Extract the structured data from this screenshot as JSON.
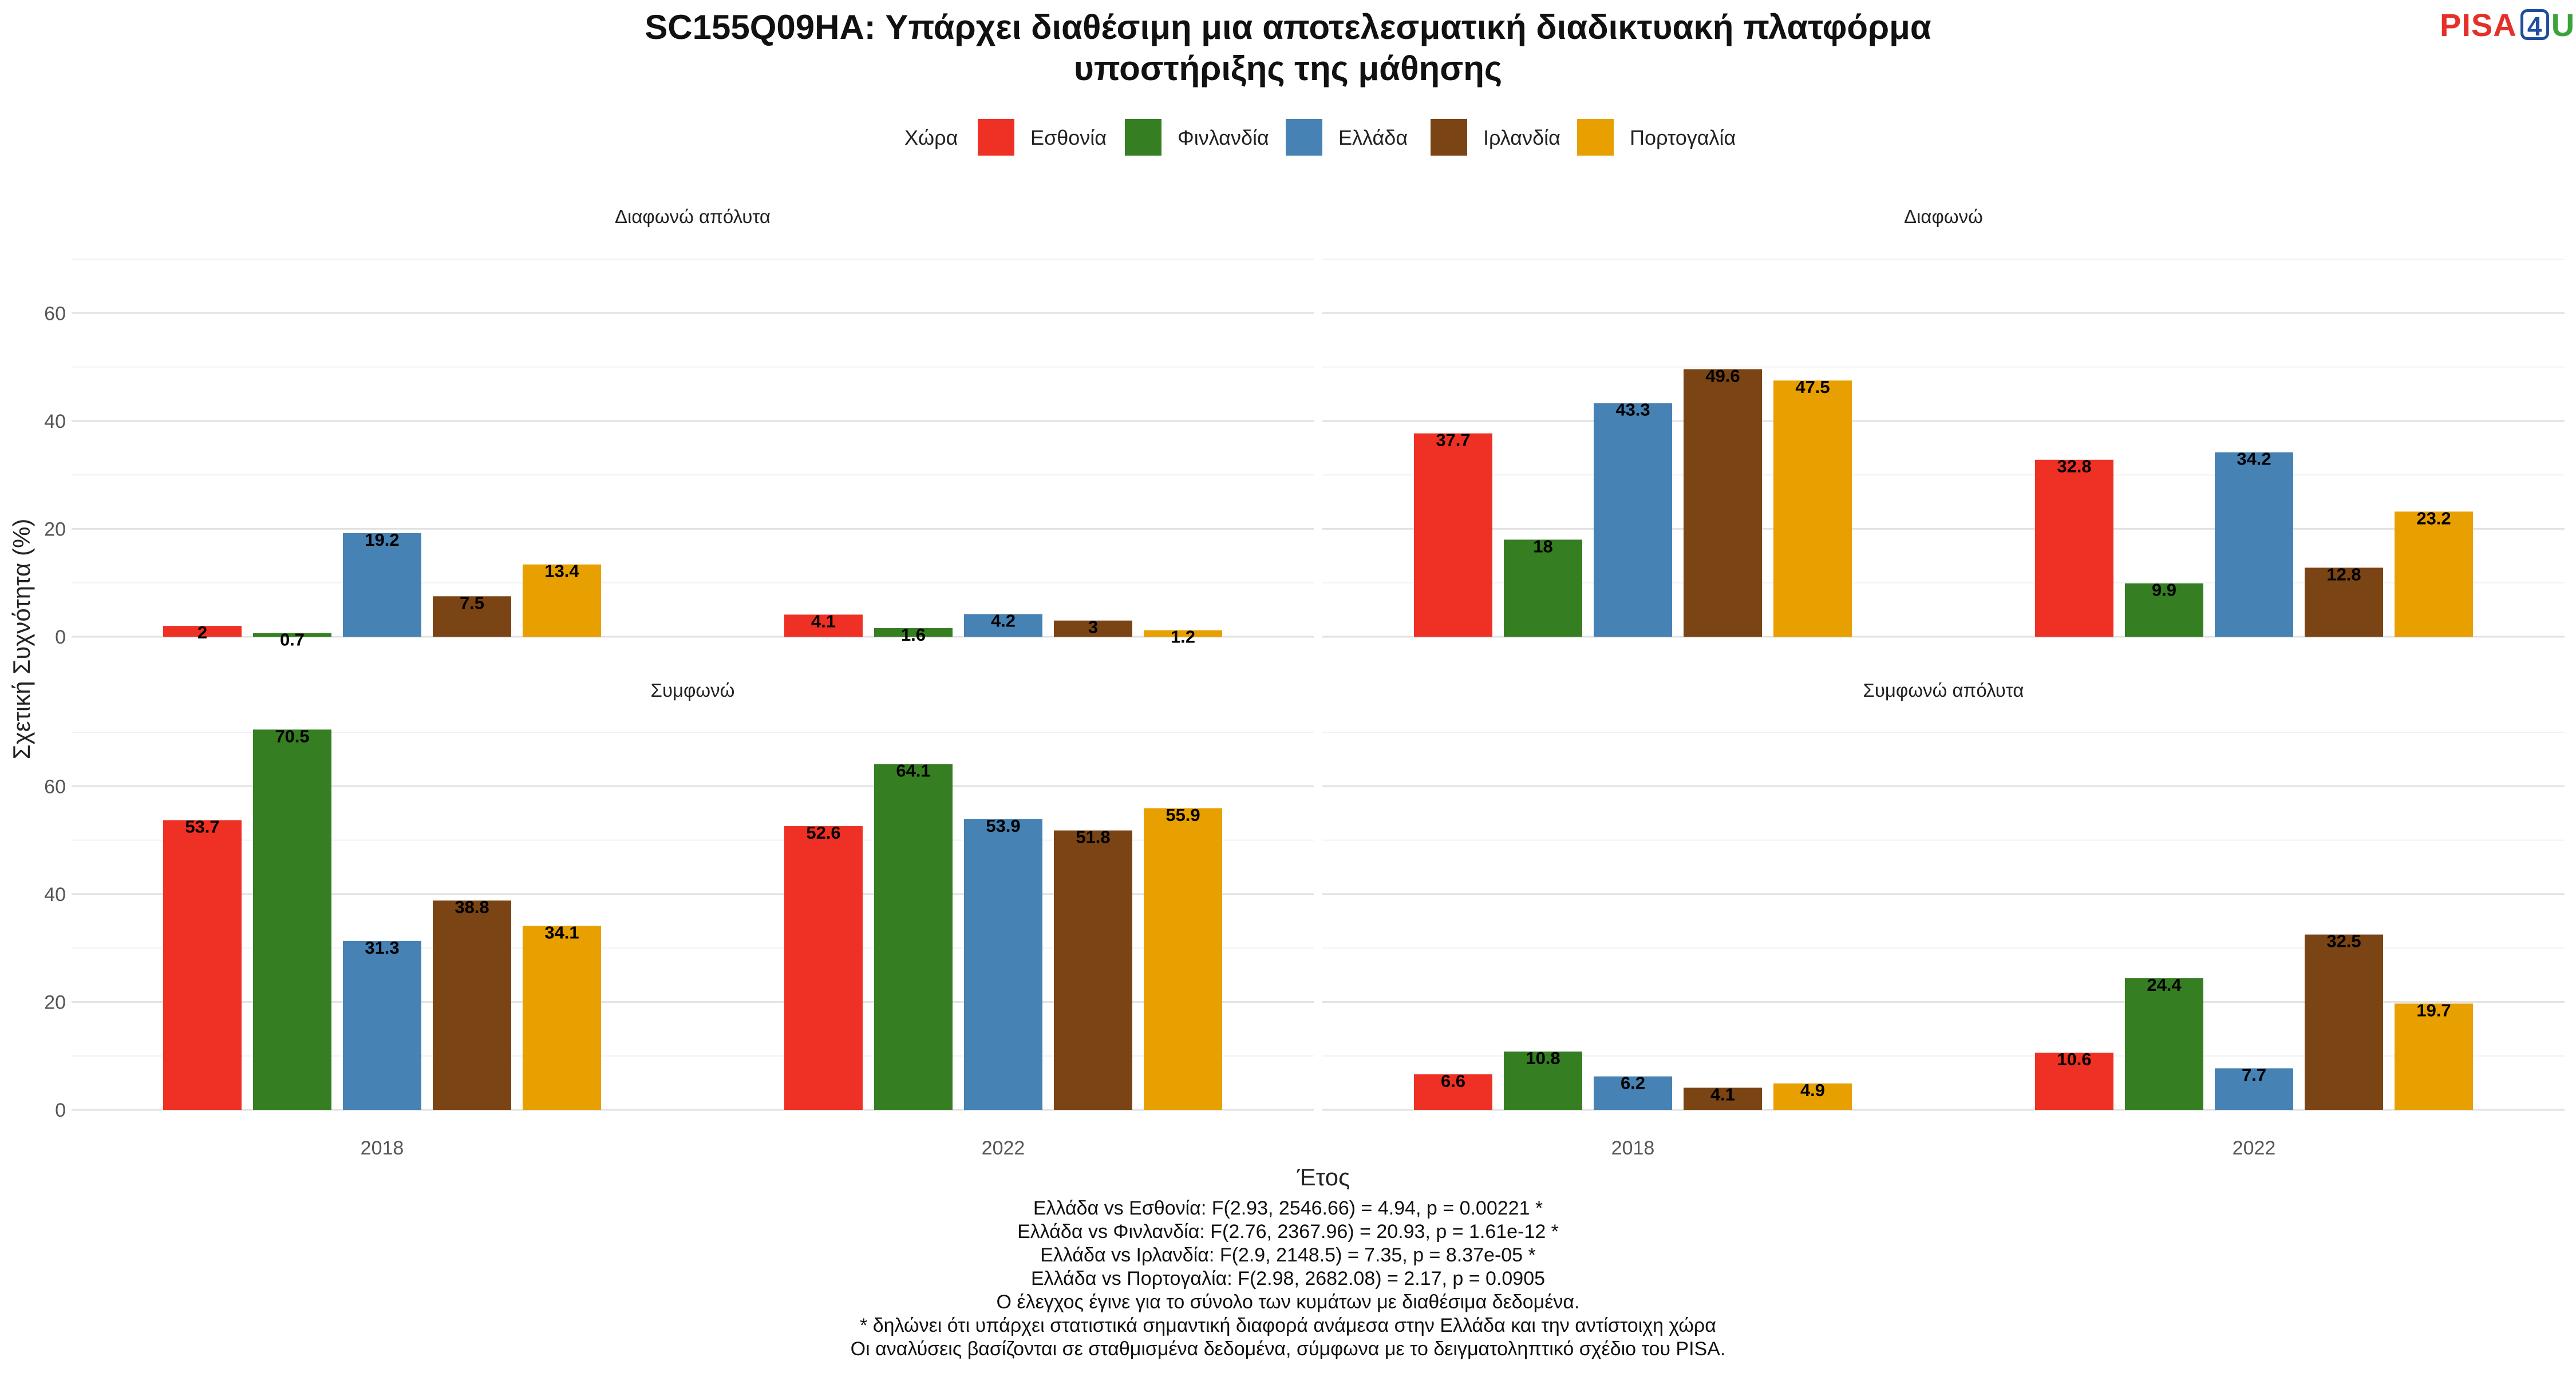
{
  "chart_data": {
    "type": "bar",
    "title": "SC155Q09HA: Υπάρχει διαθέσιμη μια αποτελεσματική διαδικτυακή πλατφόρμα υποστήριξης της μάθησης",
    "title_lines": [
      "SC155Q09HA: Υπάρχει διαθέσιμη μια αποτελεσματική διαδικτυακή πλατφόρμα",
      "υποστήριξης της μάθησης"
    ],
    "xlabel": "Έτος",
    "ylabel": "Σχετική Συχνότητα (%)",
    "ylim": [
      0,
      70
    ],
    "yticks": [
      0,
      20,
      40,
      60
    ],
    "grid": true,
    "legend": {
      "title": "Χώρα",
      "position": "top",
      "entries": [
        "Εσθονία",
        "Φινλανδία",
        "Ελλάδα",
        "Ιρλανδία",
        "Πορτογαλία"
      ]
    },
    "colors": [
      "#ee3124",
      "#367e22",
      "#4682b4",
      "#7a4415",
      "#e8a000"
    ],
    "categories": [
      "2018",
      "2022"
    ],
    "panels": [
      {
        "label": "Διαφωνώ απόλυτα",
        "series": [
          {
            "name": "Εσθονία",
            "values": [
              2,
              4.1
            ]
          },
          {
            "name": "Φινλανδία",
            "values": [
              0.7,
              1.6
            ]
          },
          {
            "name": "Ελλάδα",
            "values": [
              19.2,
              4.2
            ]
          },
          {
            "name": "Ιρλανδία",
            "values": [
              7.5,
              3
            ]
          },
          {
            "name": "Πορτογαλία",
            "values": [
              13.4,
              1.2
            ]
          }
        ]
      },
      {
        "label": "Διαφωνώ",
        "series": [
          {
            "name": "Εσθονία",
            "values": [
              37.7,
              32.8
            ]
          },
          {
            "name": "Φινλανδία",
            "values": [
              18,
              9.9
            ]
          },
          {
            "name": "Ελλάδα",
            "values": [
              43.3,
              34.2
            ]
          },
          {
            "name": "Ιρλανδία",
            "values": [
              49.6,
              12.8
            ]
          },
          {
            "name": "Πορτογαλία",
            "values": [
              47.5,
              23.2
            ]
          }
        ]
      },
      {
        "label": "Συμφωνώ",
        "series": [
          {
            "name": "Εσθονία",
            "values": [
              53.7,
              52.6
            ]
          },
          {
            "name": "Φινλανδία",
            "values": [
              70.5,
              64.1
            ]
          },
          {
            "name": "Ελλάδα",
            "values": [
              31.3,
              53.9
            ]
          },
          {
            "name": "Ιρλανδία",
            "values": [
              38.8,
              51.8
            ]
          },
          {
            "name": "Πορτογαλία",
            "values": [
              34.1,
              55.9
            ]
          }
        ]
      },
      {
        "label": "Συμφωνώ απόλυτα",
        "series": [
          {
            "name": "Εσθονία",
            "values": [
              6.6,
              10.6
            ]
          },
          {
            "name": "Φινλανδία",
            "values": [
              10.8,
              24.4
            ]
          },
          {
            "name": "Ελλάδα",
            "values": [
              6.2,
              7.7
            ]
          },
          {
            "name": "Ιρλανδία",
            "values": [
              4.1,
              32.5
            ]
          },
          {
            "name": "Πορτογαλία",
            "values": [
              4.9,
              19.7
            ]
          }
        ]
      }
    ]
  },
  "logo": {
    "pisa": "PISA",
    "four": "4",
    "u": "U"
  },
  "footnotes": [
    "Ελλάδα vs Εσθονία: F(2.93, 2546.66) = 4.94, p = 0.00221 *",
    "Ελλάδα vs Φινλανδία: F(2.76, 2367.96) = 20.93, p = 1.61e-12 *",
    "Ελλάδα vs Ιρλανδία: F(2.9, 2148.5) = 7.35, p = 8.37e-05 *",
    "Ελλάδα vs Πορτογαλία: F(2.98, 2682.08) = 2.17, p = 0.0905",
    "Ο έλεγχος έγινε για το σύνολο των κυμάτων με διαθέσιμα δεδομένα.",
    "* δηλώνει ότι υπάρχει στατιστικά σημαντική διαφορά ανάμεσα στην Ελλάδα και την αντίστοιχη χώρα",
    "Οι αναλύσεις βασίζονται σε σταθμισμένα δεδομένα, σύμφωνα με το δειγματοληπτικό σχέδιο του PISA."
  ]
}
